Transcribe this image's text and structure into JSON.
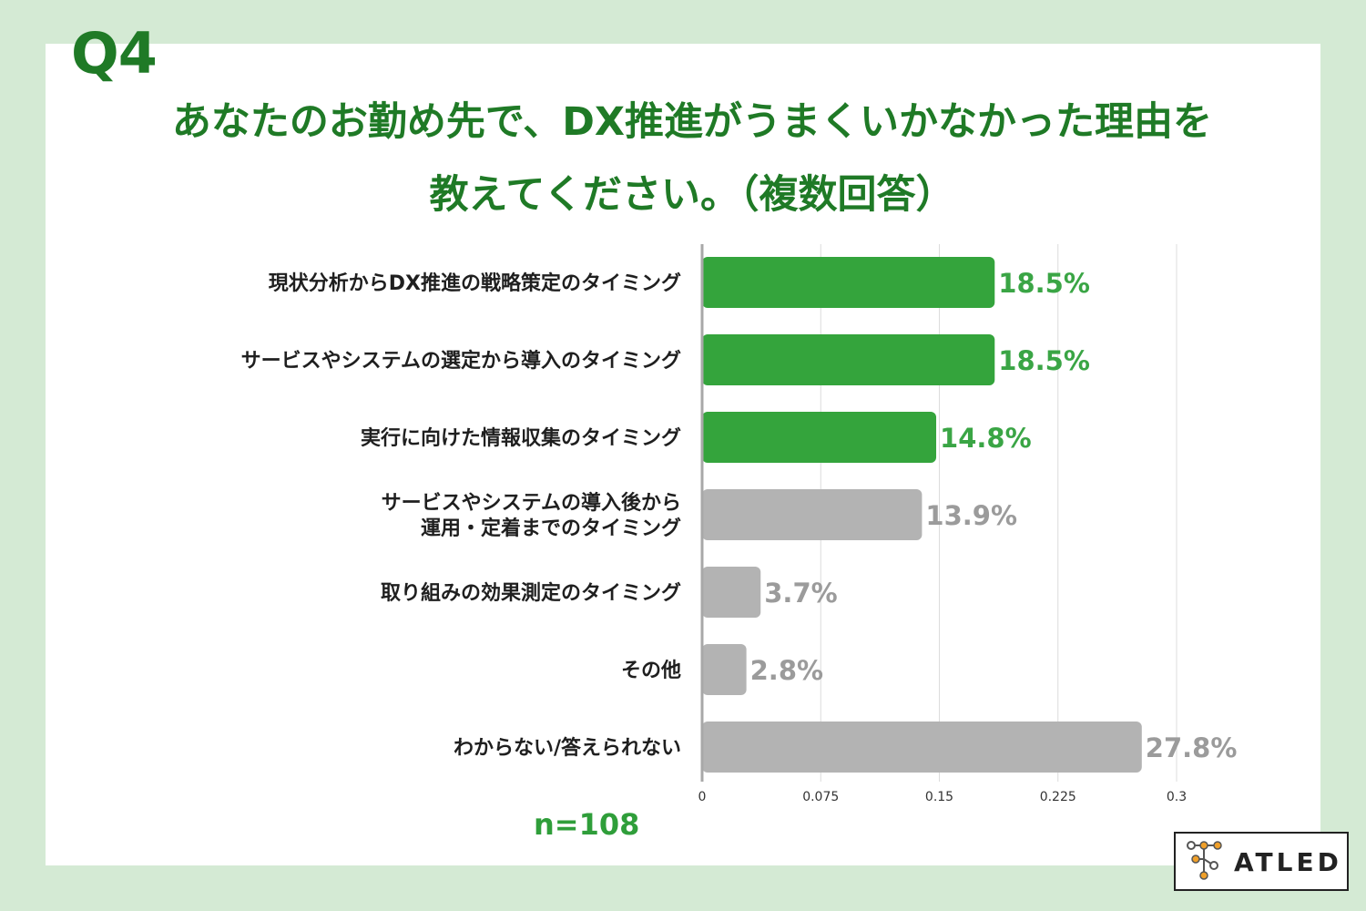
{
  "header": {
    "question": "Q4",
    "title_line1": "あなたのお勤め先で、DX推進がうまくいかなかった理由を",
    "title_line2": "教えてください。（複数回答）"
  },
  "chart_data": {
    "type": "bar",
    "orientation": "horizontal",
    "categories": [
      "現状分析からDX推進の戦略策定のタイミング",
      "サービスやシステムの選定から導入のタイミング",
      "実行に向けた情報収集のタイミング",
      "サービスやシステムの導入後から\n運用・定着までのタイミング",
      "取り組みの効果測定のタイミング",
      "その他",
      "わからない/答えられない"
    ],
    "values": [
      0.185,
      0.185,
      0.148,
      0.139,
      0.037,
      0.028,
      0.278
    ],
    "value_labels": [
      "18.5%",
      "18.5%",
      "14.8%",
      "13.9%",
      "3.7%",
      "2.8%",
      "27.8%"
    ],
    "highlighted": [
      true,
      true,
      true,
      false,
      false,
      false,
      false
    ],
    "xlim": [
      0,
      0.3
    ],
    "xticks": [
      "0",
      "0.075",
      "0.15",
      "0.225",
      "0.3"
    ],
    "xtick_values": [
      0,
      0.075,
      0.15,
      0.225,
      0.3
    ],
    "grid": true,
    "colors": {
      "highlight_bar": "#34a43c",
      "highlight_text": "#3aa545",
      "normal_bar": "#b3b3b3",
      "normal_text": "#9b9b9b"
    }
  },
  "footer": {
    "sample_size": "n=108"
  },
  "logo": {
    "text": "ATLED"
  }
}
